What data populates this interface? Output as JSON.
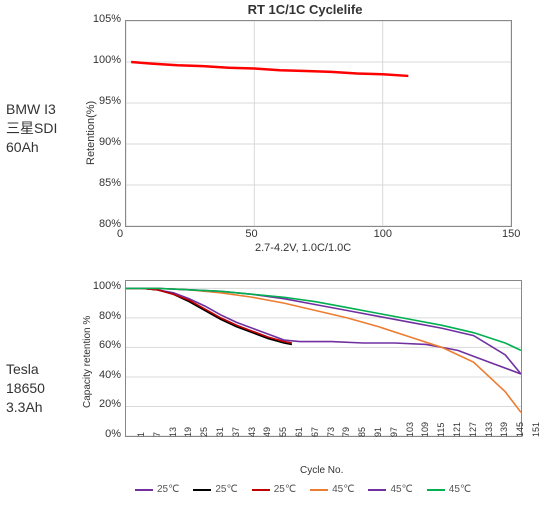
{
  "label_top": "BMW I3\n三星SDI\n60Ah",
  "label_bottom": "Tesla\n18650\n3.3Ah",
  "chart1": {
    "type": "line",
    "title": "RT 1C/1C Cyclelife",
    "title_fontsize": 13,
    "xlabel": "2.7-4.2V, 1.0C/1.0C",
    "ylabel": "Retention(%)",
    "label_fontsize": 11,
    "xlim": [
      0,
      150
    ],
    "ylim": [
      80,
      105
    ],
    "xtick_step": 50,
    "ytick_step": 5,
    "y_suffix": "%",
    "grid_color": "#d9d9d9",
    "background_color": "#ffffff",
    "border_color": "#888888",
    "series": [
      {
        "name": "retention",
        "color": "#ff0000",
        "line_width": 2.5,
        "x": [
          2,
          10,
          20,
          30,
          40,
          50,
          60,
          70,
          80,
          90,
          100,
          110
        ],
        "y": [
          100,
          99.8,
          99.6,
          99.5,
          99.3,
          99.2,
          99.0,
          98.9,
          98.8,
          98.6,
          98.5,
          98.3
        ]
      }
    ]
  },
  "chart2": {
    "type": "line",
    "xlabel": "Cycle No.",
    "ylabel": "Capacity retention %",
    "label_fontsize": 10,
    "xlim": [
      1,
      151
    ],
    "ylim": [
      0,
      105
    ],
    "ytick_step": 20,
    "y_suffix": "%",
    "xticks": [
      1,
      7,
      13,
      19,
      25,
      31,
      37,
      43,
      49,
      55,
      61,
      67,
      73,
      79,
      85,
      91,
      97,
      103,
      109,
      115,
      121,
      127,
      133,
      139,
      145,
      151
    ],
    "grid_color": "#d9d9d9",
    "background_color": "#ffffff",
    "border_color": "#888888",
    "series": [
      {
        "name": "25°C a",
        "legend_label": "25℃",
        "color": "#7030a0",
        "line_width": 1.6,
        "x": [
          1,
          7,
          13,
          19,
          25,
          31,
          37,
          43,
          49,
          55,
          61,
          67,
          73,
          79,
          91,
          103,
          115,
          127,
          139,
          151
        ],
        "y": [
          100,
          100,
          99,
          97,
          93,
          88,
          82,
          77,
          73,
          69,
          65,
          64,
          64,
          64,
          63,
          63,
          62,
          58,
          50,
          42
        ]
      },
      {
        "name": "25°C b",
        "legend_label": "25℃",
        "color": "#000000",
        "line_width": 1.6,
        "x": [
          1,
          7,
          13,
          19,
          25,
          31,
          37,
          43,
          49,
          55,
          61,
          64
        ],
        "y": [
          100,
          100,
          99,
          96,
          91,
          85,
          79,
          74,
          70,
          66,
          63,
          62
        ]
      },
      {
        "name": "25°C c",
        "legend_label": "25℃",
        "color": "#c00000",
        "line_width": 1.6,
        "x": [
          1,
          7,
          13,
          19,
          25,
          31,
          37,
          43,
          49,
          55,
          61,
          64
        ],
        "y": [
          100,
          100,
          99,
          96,
          92,
          86,
          80,
          75,
          71,
          67,
          64,
          63
        ]
      },
      {
        "name": "45°C a",
        "legend_label": "45℃",
        "color": "#ed7d31",
        "line_width": 1.6,
        "x": [
          1,
          13,
          25,
          37,
          49,
          61,
          73,
          85,
          97,
          109,
          121,
          133,
          145,
          151
        ],
        "y": [
          100,
          100,
          99,
          97,
          94,
          90,
          85,
          80,
          74,
          67,
          60,
          50,
          30,
          16
        ]
      },
      {
        "name": "45°C b",
        "legend_label": "45℃",
        "color": "#7030a0",
        "line_width": 1.6,
        "x": [
          1,
          13,
          25,
          37,
          49,
          61,
          73,
          85,
          97,
          109,
          121,
          133,
          145,
          151
        ],
        "y": [
          100,
          100,
          99,
          98,
          96,
          93,
          89,
          85,
          81,
          77,
          73,
          68,
          55,
          42
        ]
      },
      {
        "name": "45°C c",
        "legend_label": "45℃",
        "color": "#00b050",
        "line_width": 1.6,
        "x": [
          1,
          13,
          25,
          37,
          49,
          61,
          73,
          85,
          97,
          109,
          121,
          133,
          145,
          151
        ],
        "y": [
          100,
          100,
          99,
          98,
          96,
          94,
          91,
          87,
          83,
          79,
          75,
          70,
          63,
          58
        ]
      }
    ]
  }
}
